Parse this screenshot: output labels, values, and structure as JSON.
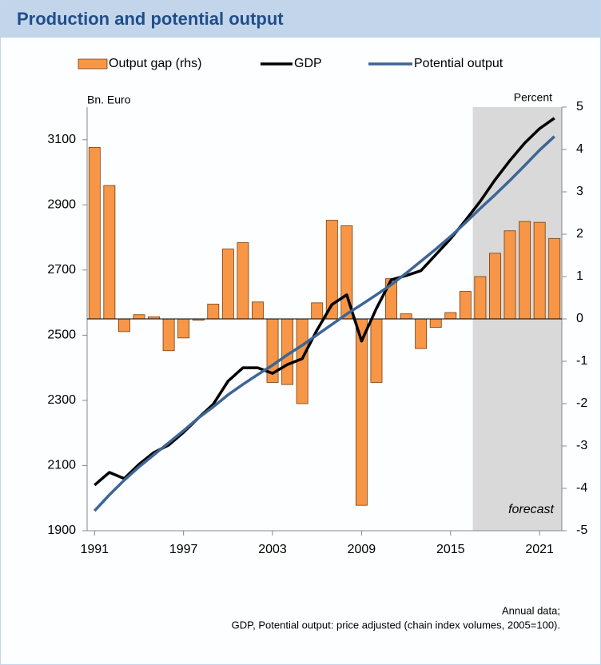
{
  "chart_data": {
    "type": "combo",
    "title": "Production and potential output",
    "y_label": "Bn. Euro",
    "y2_label": "Percent",
    "x": [
      1991,
      1992,
      1993,
      1994,
      1995,
      1996,
      1997,
      1998,
      1999,
      2000,
      2001,
      2002,
      2003,
      2004,
      2005,
      2006,
      2007,
      2008,
      2009,
      2010,
      2011,
      2012,
      2013,
      2014,
      2015,
      2016,
      2017,
      2018,
      2019,
      2020,
      2021,
      2022
    ],
    "xlim": [
      1990.5,
      2022.5
    ],
    "xticks": [
      1991,
      1997,
      2003,
      2009,
      2015,
      2021
    ],
    "ylim": [
      1900,
      3200
    ],
    "yticks": [
      1900,
      2100,
      2300,
      2500,
      2700,
      2900,
      3100
    ],
    "y2lim": [
      -5,
      5
    ],
    "y2ticks": [
      -5,
      -4,
      -3,
      -2,
      -1,
      0,
      1,
      2,
      3,
      4,
      5
    ],
    "grid": false,
    "legend": "top",
    "shaded_region": {
      "xlim": [
        2016.5,
        2022.5
      ],
      "label": "forecast",
      "color": "#d9d9d9"
    },
    "series": [
      {
        "name": "Output gap (rhs)",
        "type": "bar",
        "axis": "y2",
        "color": "#f79646",
        "values": [
          4.05,
          3.15,
          -0.3,
          0.1,
          0.05,
          -0.75,
          -0.45,
          -0.03,
          0.35,
          1.65,
          1.8,
          0.4,
          -1.5,
          -1.55,
          -2.0,
          0.38,
          2.33,
          2.2,
          -4.4,
          -1.5,
          0.95,
          0.12,
          -0.7,
          -0.2,
          0.15,
          0.65,
          1.0,
          1.55,
          2.08,
          2.3,
          2.28,
          1.9
        ]
      },
      {
        "name": "GDP",
        "type": "line",
        "axis": "y",
        "color": "#000000",
        "values": [
          2040,
          2079,
          2060,
          2104,
          2140,
          2163,
          2202,
          2246,
          2288,
          2359,
          2400,
          2400,
          2383,
          2410,
          2428,
          2516,
          2594,
          2624,
          2482,
          2582,
          2670,
          2683,
          2698,
          2747,
          2796,
          2852,
          2911,
          2977,
          3036,
          3090,
          3134,
          3166
        ]
      },
      {
        "name": "Potential output",
        "type": "line",
        "axis": "y",
        "color": "#3d6596",
        "values": [
          1961,
          2010,
          2055,
          2096,
          2133,
          2170,
          2207,
          2246,
          2280,
          2317,
          2349,
          2379,
          2408,
          2440,
          2469,
          2501,
          2533,
          2565,
          2594,
          2624,
          2655,
          2690,
          2727,
          2764,
          2803,
          2845,
          2889,
          2931,
          2975,
          3021,
          3068,
          3110
        ]
      }
    ],
    "notes": [
      "Annual data;",
      "GDP, Potential output: price adjusted (chain index volumes, 2005=100)."
    ]
  }
}
